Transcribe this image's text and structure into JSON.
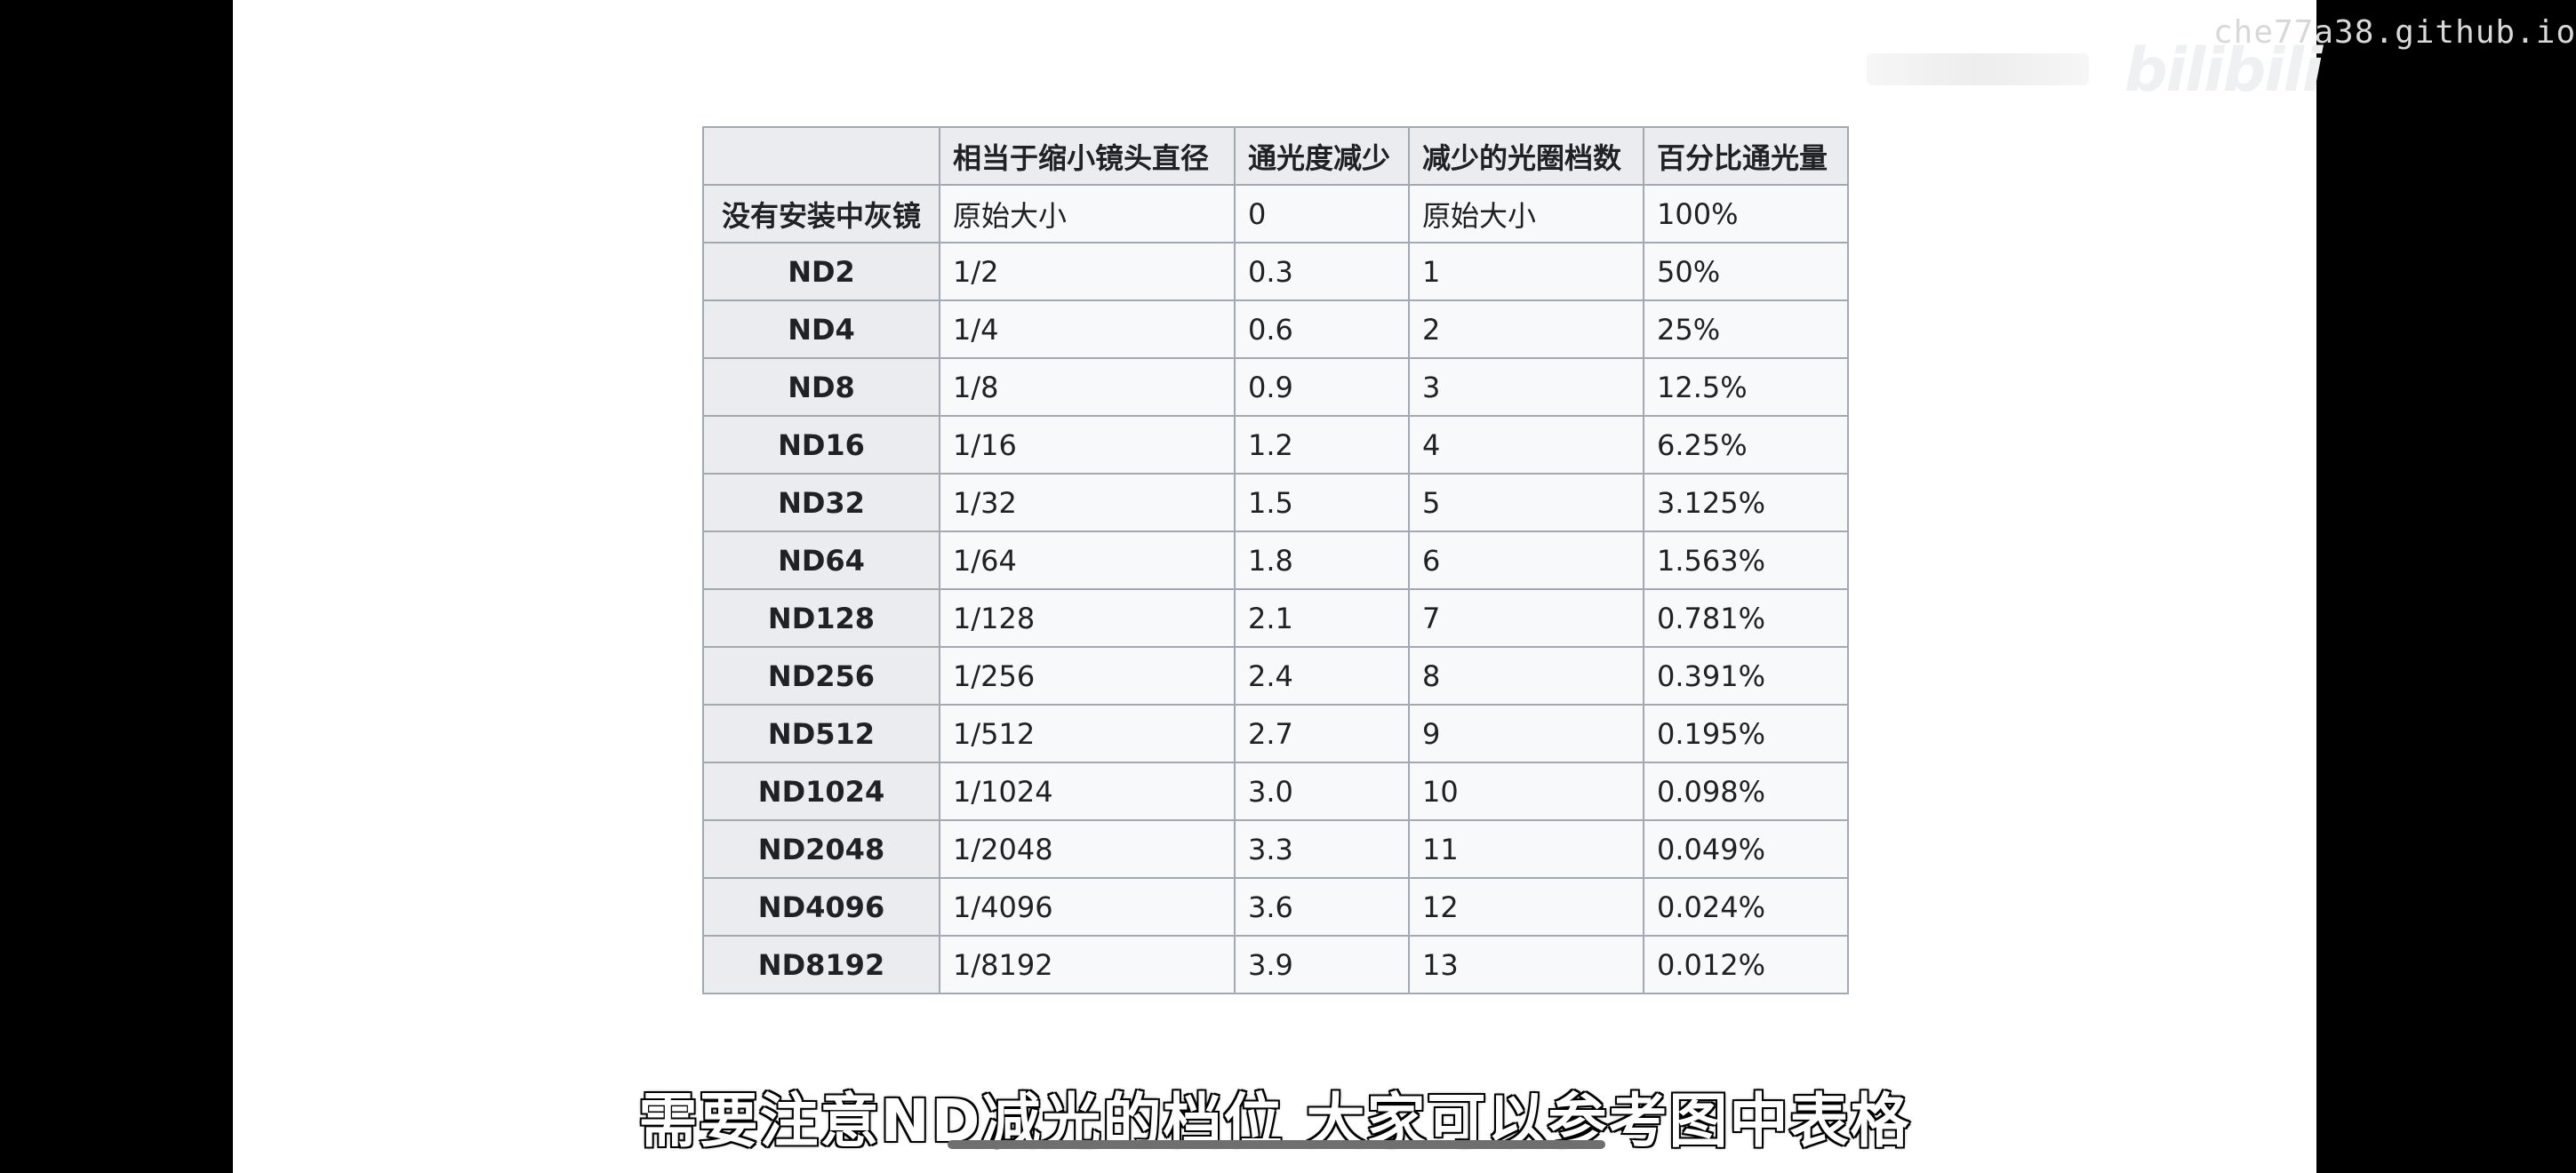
{
  "watermark": {
    "site": "che77a38.github.io",
    "logo": "bilibili"
  },
  "table": {
    "headers": [
      "",
      "相当于缩小镜头直径",
      "通光度减少",
      "减少的光圈档数",
      "百分比通光量"
    ],
    "rows": [
      [
        "没有安装中灰镜",
        "原始大小",
        "0",
        "原始大小",
        "100%"
      ],
      [
        "ND2",
        "1/2",
        "0.3",
        "1",
        "50%"
      ],
      [
        "ND4",
        "1/4",
        "0.6",
        "2",
        "25%"
      ],
      [
        "ND8",
        "1/8",
        "0.9",
        "3",
        "12.5%"
      ],
      [
        "ND16",
        "1/16",
        "1.2",
        "4",
        "6.25%"
      ],
      [
        "ND32",
        "1/32",
        "1.5",
        "5",
        "3.125%"
      ],
      [
        "ND64",
        "1/64",
        "1.8",
        "6",
        "1.563%"
      ],
      [
        "ND128",
        "1/128",
        "2.1",
        "7",
        "0.781%"
      ],
      [
        "ND256",
        "1/256",
        "2.4",
        "8",
        "0.391%"
      ],
      [
        "ND512",
        "1/512",
        "2.7",
        "9",
        "0.195%"
      ],
      [
        "ND1024",
        "1/1024",
        "3.0",
        "10",
        "0.098%"
      ],
      [
        "ND2048",
        "1/2048",
        "3.3",
        "11",
        "0.049%"
      ],
      [
        "ND4096",
        "1/4096",
        "3.6",
        "12",
        "0.024%"
      ],
      [
        "ND8192",
        "1/8192",
        "3.9",
        "13",
        "0.012%"
      ]
    ]
  },
  "subtitle": "需要注意ND减光的档位 大家可以参考图中表格",
  "player": {
    "progress_fraction": 0.0
  },
  "colors": {
    "table_border": "#a2a9b1",
    "header_bg": "#eaecf0",
    "cell_bg": "#f8f9fa",
    "text": "#202122"
  }
}
